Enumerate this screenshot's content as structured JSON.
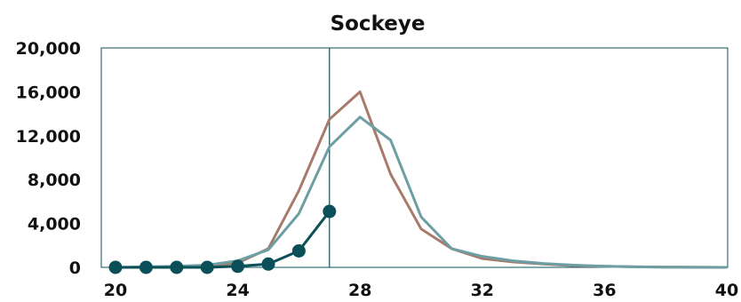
{
  "chart_data": {
    "type": "line",
    "title": "Sockeye",
    "xlabel": "",
    "ylabel": "",
    "xlim": [
      20,
      40
    ],
    "ylim": [
      0,
      20000
    ],
    "x_ticks": [
      "20",
      "24",
      "28",
      "32",
      "36",
      "40"
    ],
    "y_ticks": [
      "0",
      "4,000",
      "8,000",
      "12,000",
      "16,000",
      "20,000"
    ],
    "reference_line_x": 27,
    "grid": false,
    "legend": "none",
    "series": [
      {
        "color": "#a87a6c",
        "markers": false,
        "points": [
          [
            20,
            0
          ],
          [
            21,
            0
          ],
          [
            22,
            50
          ],
          [
            23,
            100
          ],
          [
            24,
            400
          ],
          [
            25,
            1700
          ],
          [
            26,
            7000
          ],
          [
            27,
            13500
          ],
          [
            28,
            16000
          ],
          [
            29,
            8500
          ],
          [
            30,
            3500
          ],
          [
            31,
            1700
          ],
          [
            32,
            800
          ],
          [
            33,
            500
          ],
          [
            34,
            300
          ],
          [
            35,
            150
          ],
          [
            36,
            100
          ],
          [
            37,
            50
          ],
          [
            38,
            20
          ],
          [
            39,
            10
          ],
          [
            40,
            0
          ]
        ]
      },
      {
        "color": "#6c9ea3",
        "markers": false,
        "points": [
          [
            20,
            0
          ],
          [
            21,
            50
          ],
          [
            22,
            100
          ],
          [
            23,
            200
          ],
          [
            24,
            600
          ],
          [
            25,
            1600
          ],
          [
            26,
            4900
          ],
          [
            27,
            11000
          ],
          [
            28,
            13700
          ],
          [
            29,
            11600
          ],
          [
            30,
            4600
          ],
          [
            31,
            1700
          ],
          [
            32,
            1000
          ],
          [
            33,
            600
          ],
          [
            34,
            350
          ],
          [
            35,
            200
          ],
          [
            36,
            100
          ],
          [
            37,
            50
          ],
          [
            38,
            20
          ],
          [
            39,
            10
          ],
          [
            40,
            0
          ]
        ]
      },
      {
        "color": "#0b5059",
        "markers": true,
        "points": [
          [
            20,
            0
          ],
          [
            21,
            0
          ],
          [
            22,
            0
          ],
          [
            23,
            0
          ],
          [
            24,
            100
          ],
          [
            25,
            300
          ],
          [
            26,
            1500
          ],
          [
            27,
            5100
          ]
        ]
      }
    ]
  }
}
